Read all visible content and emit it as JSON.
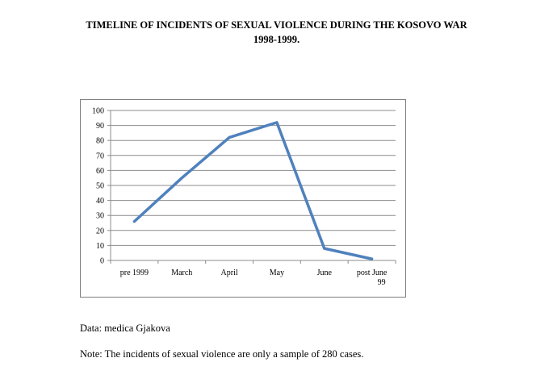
{
  "page": {
    "title_line1": "TIMELINE OF INCIDENTS OF SEXUAL VIOLENCE DURING THE KOSOVO WAR",
    "title_line2": "1998-1999.",
    "data_source": "Data: medica Gjakova",
    "note": "Note: The incidents of sexual violence are only a sample of 280 cases."
  },
  "chart_data": {
    "type": "line",
    "title": "",
    "xlabel": "",
    "ylabel": "",
    "categories": [
      "pre 1999",
      "March",
      "April",
      "May",
      "June",
      "post June 99"
    ],
    "category_lines": [
      [
        "pre 1999"
      ],
      [
        "March"
      ],
      [
        "April"
      ],
      [
        "May"
      ],
      [
        "June"
      ],
      [
        "post June",
        "99"
      ]
    ],
    "series": [
      {
        "values": [
          26,
          55,
          82,
          92,
          8,
          1
        ],
        "color": "#4f81bd"
      }
    ],
    "ylim": [
      0,
      100
    ],
    "yticks": [
      0,
      10,
      20,
      30,
      40,
      50,
      60,
      70,
      80,
      90,
      100
    ],
    "grid": true,
    "legend": "none"
  }
}
